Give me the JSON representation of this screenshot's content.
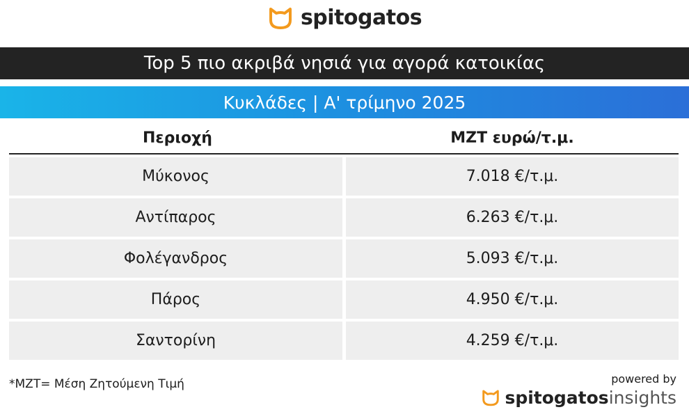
{
  "header": {
    "logo": "spitogatos",
    "title": "Top 5 πιο ακριβά νησιά για αγορά κατοικίας",
    "subtitle": "Κυκλάδες | Α' τρίμηνο 2025"
  },
  "table": {
    "columns": [
      "Περιοχή",
      "ΜΖΤ ευρώ/τ.μ."
    ],
    "rows": [
      [
        "Μύκονος",
        "7.018 €/τ.μ."
      ],
      [
        "Αντίπαρος",
        "6.263 €/τ.μ."
      ],
      [
        "Φολέγανδρος",
        "5.093 €/τ.μ."
      ],
      [
        "Πάρος",
        "4.950 €/τ.μ."
      ],
      [
        "Σαντορίνη",
        "4.259 €/τ.μ."
      ]
    ]
  },
  "footer": {
    "note": "*ΜΖΤ= Μέση Ζητούμενη Τιμή",
    "powered_by": "powered by",
    "brand": "spitogatos",
    "brand_suffix": "insights"
  }
}
